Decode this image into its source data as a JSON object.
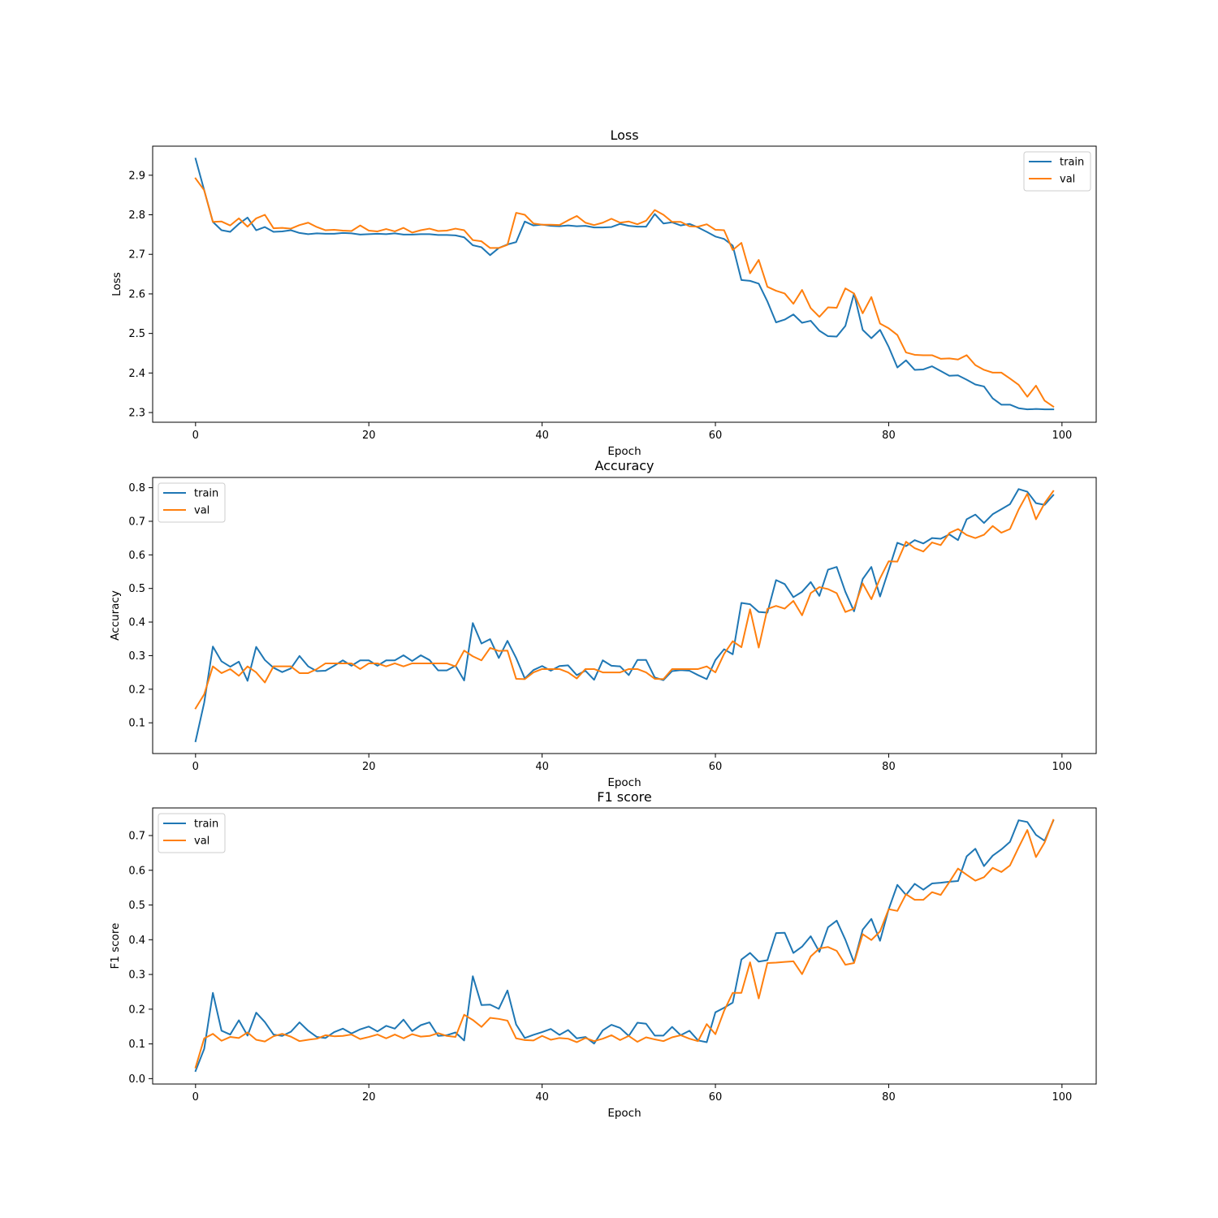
{
  "chart_data": [
    {
      "type": "line",
      "title": "Loss",
      "xlabel": "Epoch",
      "ylabel": "Loss",
      "xlim": [
        -4.95,
        103.95
      ],
      "ylim": [
        2.2755,
        2.9735
      ],
      "xticks": [
        0,
        20,
        40,
        60,
        80,
        100
      ],
      "yticks": [
        2.3,
        2.4,
        2.5,
        2.6,
        2.7,
        2.8,
        2.9
      ],
      "ytick_labels": [
        "2.3",
        "2.4",
        "2.5",
        "2.6",
        "2.7",
        "2.8",
        "2.9"
      ],
      "legend": "upper right",
      "grid": false,
      "series": [
        {
          "name": "train",
          "color": "#1f77b4",
          "values": [
            2.942,
            2.862,
            2.782,
            2.761,
            2.757,
            2.777,
            2.793,
            2.761,
            2.769,
            2.757,
            2.758,
            2.761,
            2.754,
            2.751,
            2.753,
            2.752,
            2.752,
            2.754,
            2.753,
            2.75,
            2.751,
            2.752,
            2.751,
            2.753,
            2.75,
            2.75,
            2.751,
            2.751,
            2.749,
            2.749,
            2.748,
            2.743,
            2.723,
            2.718,
            2.698,
            2.716,
            2.725,
            2.731,
            2.783,
            2.773,
            2.775,
            2.772,
            2.771,
            2.773,
            2.771,
            2.772,
            2.768,
            2.768,
            2.769,
            2.777,
            2.772,
            2.77,
            2.77,
            2.802,
            2.778,
            2.781,
            2.773,
            2.777,
            2.768,
            2.757,
            2.745,
            2.739,
            2.722,
            2.635,
            2.633,
            2.626,
            2.581,
            2.528,
            2.535,
            2.548,
            2.527,
            2.532,
            2.507,
            2.493,
            2.492,
            2.519,
            2.601,
            2.509,
            2.488,
            2.509,
            2.466,
            2.414,
            2.432,
            2.408,
            2.409,
            2.417,
            2.405,
            2.393,
            2.394,
            2.383,
            2.371,
            2.366,
            2.336,
            2.32,
            2.32,
            2.311,
            2.308,
            2.309,
            2.308,
            2.308
          ]
        },
        {
          "name": "val",
          "color": "#ff7f0e",
          "values": [
            2.892,
            2.862,
            2.782,
            2.783,
            2.773,
            2.791,
            2.77,
            2.791,
            2.8,
            2.766,
            2.767,
            2.765,
            2.774,
            2.78,
            2.769,
            2.761,
            2.762,
            2.76,
            2.759,
            2.773,
            2.76,
            2.758,
            2.764,
            2.758,
            2.767,
            2.755,
            2.761,
            2.765,
            2.759,
            2.76,
            2.765,
            2.761,
            2.736,
            2.733,
            2.716,
            2.716,
            2.724,
            2.805,
            2.8,
            2.778,
            2.775,
            2.775,
            2.774,
            2.786,
            2.797,
            2.78,
            2.774,
            2.78,
            2.79,
            2.78,
            2.783,
            2.776,
            2.785,
            2.812,
            2.8,
            2.782,
            2.782,
            2.771,
            2.77,
            2.776,
            2.762,
            2.761,
            2.711,
            2.729,
            2.652,
            2.686,
            2.618,
            2.608,
            2.601,
            2.575,
            2.61,
            2.564,
            2.542,
            2.566,
            2.565,
            2.614,
            2.601,
            2.551,
            2.592,
            2.525,
            2.513,
            2.496,
            2.452,
            2.446,
            2.445,
            2.445,
            2.436,
            2.437,
            2.434,
            2.445,
            2.42,
            2.408,
            2.401,
            2.401,
            2.386,
            2.37,
            2.34,
            2.368,
            2.33,
            2.315
          ]
        }
      ]
    },
    {
      "type": "line",
      "title": "Accuracy",
      "xlabel": "Epoch",
      "ylabel": "Accuracy",
      "xlim": [
        -4.95,
        103.95
      ],
      "ylim": [
        0.0085,
        0.8305
      ],
      "xticks": [
        0,
        20,
        40,
        60,
        80,
        100
      ],
      "yticks": [
        0.1,
        0.2,
        0.3,
        0.4,
        0.5,
        0.6,
        0.7,
        0.8
      ],
      "ytick_labels": [
        "0.1",
        "0.2",
        "0.3",
        "0.4",
        "0.5",
        "0.6",
        "0.7",
        "0.8"
      ],
      "legend": "upper left",
      "grid": false,
      "series": [
        {
          "name": "train",
          "color": "#1f77b4",
          "values": [
            0.045,
            0.16,
            0.327,
            0.283,
            0.267,
            0.282,
            0.225,
            0.326,
            0.287,
            0.264,
            0.251,
            0.262,
            0.299,
            0.268,
            0.254,
            0.255,
            0.27,
            0.286,
            0.27,
            0.286,
            0.286,
            0.27,
            0.286,
            0.286,
            0.301,
            0.284,
            0.301,
            0.287,
            0.256,
            0.256,
            0.27,
            0.226,
            0.397,
            0.336,
            0.349,
            0.293,
            0.344,
            0.293,
            0.232,
            0.257,
            0.269,
            0.255,
            0.269,
            0.271,
            0.242,
            0.255,
            0.228,
            0.286,
            0.27,
            0.268,
            0.242,
            0.287,
            0.287,
            0.235,
            0.227,
            0.254,
            0.257,
            0.255,
            0.242,
            0.23,
            0.287,
            0.319,
            0.304,
            0.457,
            0.453,
            0.43,
            0.428,
            0.525,
            0.513,
            0.474,
            0.49,
            0.519,
            0.478,
            0.556,
            0.564,
            0.49,
            0.432,
            0.528,
            0.564,
            0.476,
            0.555,
            0.636,
            0.626,
            0.644,
            0.634,
            0.65,
            0.648,
            0.661,
            0.644,
            0.706,
            0.72,
            0.695,
            0.721,
            0.736,
            0.751,
            0.796,
            0.788,
            0.754,
            0.749,
            0.778
          ]
        },
        {
          "name": "val",
          "color": "#ff7f0e",
          "values": [
            0.143,
            0.185,
            0.268,
            0.248,
            0.26,
            0.24,
            0.268,
            0.25,
            0.22,
            0.268,
            0.268,
            0.268,
            0.248,
            0.248,
            0.26,
            0.277,
            0.277,
            0.277,
            0.277,
            0.26,
            0.277,
            0.277,
            0.268,
            0.277,
            0.268,
            0.277,
            0.277,
            0.277,
            0.277,
            0.277,
            0.268,
            0.315,
            0.298,
            0.286,
            0.323,
            0.314,
            0.315,
            0.231,
            0.23,
            0.25,
            0.26,
            0.26,
            0.26,
            0.25,
            0.232,
            0.26,
            0.26,
            0.25,
            0.25,
            0.25,
            0.26,
            0.26,
            0.25,
            0.231,
            0.23,
            0.26,
            0.26,
            0.26,
            0.26,
            0.268,
            0.25,
            0.305,
            0.343,
            0.325,
            0.438,
            0.324,
            0.439,
            0.448,
            0.44,
            0.463,
            0.42,
            0.486,
            0.504,
            0.498,
            0.486,
            0.43,
            0.44,
            0.515,
            0.468,
            0.53,
            0.581,
            0.58,
            0.639,
            0.62,
            0.61,
            0.637,
            0.629,
            0.665,
            0.677,
            0.659,
            0.65,
            0.66,
            0.686,
            0.666,
            0.677,
            0.735,
            0.782,
            0.706,
            0.754,
            0.79
          ]
        }
      ]
    },
    {
      "type": "line",
      "title": "F1 score",
      "xlabel": "Epoch",
      "ylabel": "F1 score",
      "xlim": [
        -4.95,
        103.95
      ],
      "ylim": [
        -0.0155,
        0.7795
      ],
      "xticks": [
        0,
        20,
        40,
        60,
        80,
        100
      ],
      "yticks": [
        0.0,
        0.1,
        0.2,
        0.3,
        0.4,
        0.5,
        0.6,
        0.7
      ],
      "ytick_labels": [
        "0.0",
        "0.1",
        "0.2",
        "0.3",
        "0.4",
        "0.5",
        "0.6",
        "0.7"
      ],
      "legend": "upper left",
      "grid": false,
      "series": [
        {
          "name": "train",
          "color": "#1f77b4",
          "values": [
            0.022,
            0.086,
            0.247,
            0.138,
            0.127,
            0.168,
            0.124,
            0.19,
            0.163,
            0.127,
            0.123,
            0.135,
            0.162,
            0.138,
            0.12,
            0.117,
            0.134,
            0.144,
            0.13,
            0.142,
            0.15,
            0.136,
            0.152,
            0.144,
            0.17,
            0.137,
            0.154,
            0.162,
            0.123,
            0.125,
            0.133,
            0.11,
            0.295,
            0.212,
            0.213,
            0.201,
            0.254,
            0.156,
            0.117,
            0.126,
            0.134,
            0.143,
            0.126,
            0.14,
            0.116,
            0.12,
            0.101,
            0.139,
            0.155,
            0.146,
            0.123,
            0.161,
            0.158,
            0.124,
            0.124,
            0.149,
            0.125,
            0.138,
            0.11,
            0.105,
            0.191,
            0.204,
            0.219,
            0.343,
            0.362,
            0.337,
            0.341,
            0.419,
            0.42,
            0.362,
            0.38,
            0.41,
            0.365,
            0.436,
            0.455,
            0.4,
            0.335,
            0.429,
            0.46,
            0.397,
            0.488,
            0.558,
            0.529,
            0.561,
            0.544,
            0.562,
            0.564,
            0.567,
            0.569,
            0.64,
            0.662,
            0.612,
            0.642,
            0.66,
            0.682,
            0.744,
            0.739,
            0.702,
            0.685,
            0.743
          ]
        },
        {
          "name": "val",
          "color": "#ff7f0e",
          "values": [
            0.032,
            0.116,
            0.129,
            0.109,
            0.12,
            0.117,
            0.133,
            0.112,
            0.107,
            0.122,
            0.129,
            0.121,
            0.108,
            0.112,
            0.115,
            0.125,
            0.122,
            0.123,
            0.127,
            0.114,
            0.12,
            0.127,
            0.116,
            0.127,
            0.116,
            0.128,
            0.121,
            0.123,
            0.131,
            0.123,
            0.12,
            0.184,
            0.169,
            0.149,
            0.175,
            0.172,
            0.167,
            0.116,
            0.111,
            0.11,
            0.123,
            0.112,
            0.117,
            0.115,
            0.105,
            0.117,
            0.108,
            0.115,
            0.125,
            0.111,
            0.123,
            0.106,
            0.119,
            0.113,
            0.108,
            0.119,
            0.125,
            0.115,
            0.108,
            0.157,
            0.128,
            0.195,
            0.247,
            0.247,
            0.335,
            0.231,
            0.333,
            0.334,
            0.336,
            0.338,
            0.301,
            0.352,
            0.375,
            0.379,
            0.368,
            0.328,
            0.333,
            0.416,
            0.399,
            0.424,
            0.488,
            0.483,
            0.531,
            0.515,
            0.515,
            0.537,
            0.529,
            0.566,
            0.605,
            0.587,
            0.57,
            0.58,
            0.607,
            0.595,
            0.614,
            0.666,
            0.716,
            0.638,
            0.68,
            0.745
          ]
        }
      ]
    }
  ]
}
